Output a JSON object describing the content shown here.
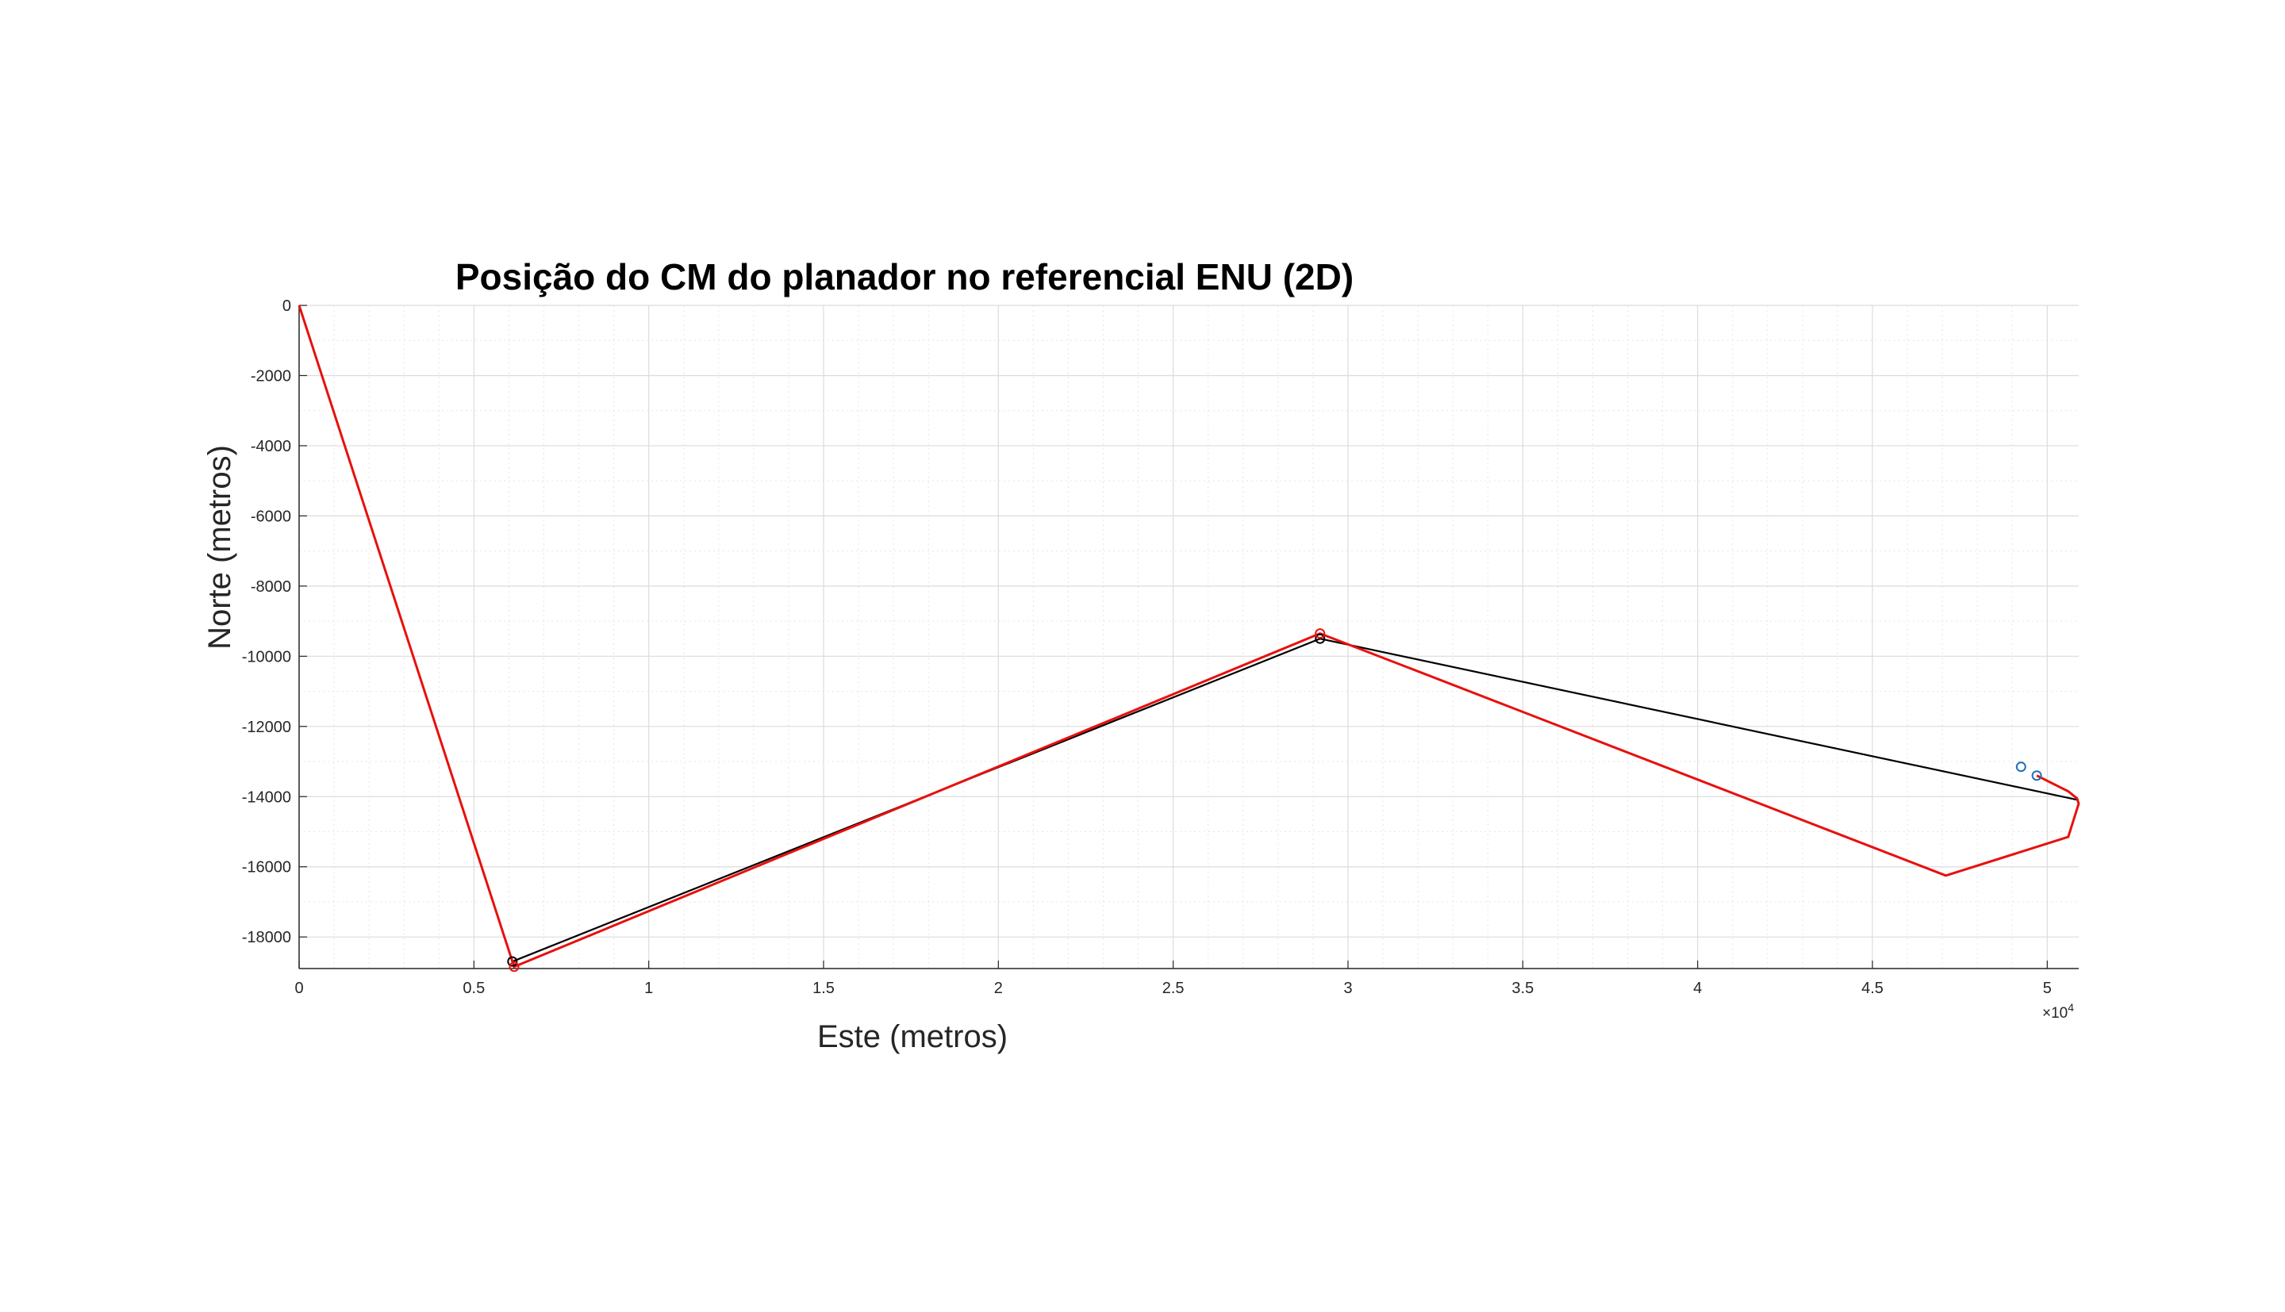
{
  "chart_data": {
    "type": "line",
    "title": "Posição do CM do planador no referencial ENU (2D)",
    "xlabel": "Este (metros)",
    "ylabel": "Norte (metros)",
    "x_exponent_base": "×10",
    "x_exponent_power": "4",
    "xlim": [
      0,
      50900
    ],
    "ylim": [
      -18900,
      0
    ],
    "x_ticks": [
      0,
      5000,
      10000,
      15000,
      20000,
      25000,
      30000,
      35000,
      40000,
      45000,
      50000
    ],
    "x_tick_labels": [
      "0",
      "0.5",
      "1",
      "1.5",
      "2",
      "2.5",
      "3",
      "3.5",
      "4",
      "4.5",
      "5"
    ],
    "y_ticks": [
      0,
      -2000,
      -4000,
      -6000,
      -8000,
      -10000,
      -12000,
      -14000,
      -16000,
      -18000
    ],
    "y_tick_labels": [
      "0",
      "-2000",
      "-4000",
      "-6000",
      "-8000",
      "-10000",
      "-12000",
      "-14000",
      "-16000",
      "-18000"
    ],
    "grid": true,
    "minor_grid": true,
    "series": [
      {
        "color": "#000000",
        "x": [
          0,
          6100,
          29200,
          50900
        ],
        "y": [
          0,
          -18700,
          -9500,
          -14100
        ]
      },
      {
        "color": "#e8100c",
        "x": [
          0,
          6150,
          29200,
          47100,
          50600,
          50900,
          50850,
          50600,
          49700
        ],
        "y": [
          0,
          -18850,
          -9350,
          -16250,
          -15150,
          -14200,
          -14050,
          -13850,
          -13400
        ]
      }
    ],
    "markers": [
      {
        "color": "#000000",
        "x": 6100,
        "y": -18700
      },
      {
        "color": "#e8100c",
        "x": 6150,
        "y": -18850
      },
      {
        "color": "#000000",
        "x": 29200,
        "y": -9500
      },
      {
        "color": "#e8100c",
        "x": 29200,
        "y": -9350
      },
      {
        "color": "#1f6fb5",
        "x": 49250,
        "y": -13150
      },
      {
        "color": "#1f6fb5",
        "x": 49700,
        "y": -13400
      }
    ]
  }
}
